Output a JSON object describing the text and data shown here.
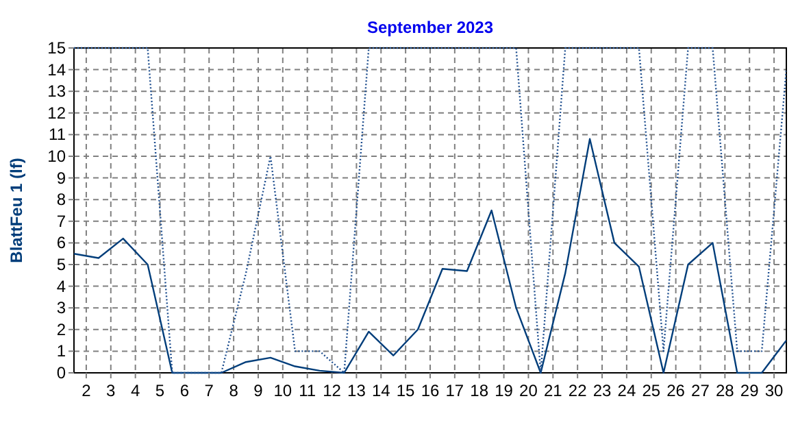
{
  "chart_data": {
    "type": "line",
    "title": "September 2023",
    "ylabel": "BlattFeu 1  (lf)",
    "x": [
      1.5,
      2.5,
      3.5,
      4.5,
      5.5,
      6.5,
      7.5,
      8.5,
      9.5,
      10.5,
      11.5,
      12.5,
      13.5,
      14.5,
      15.5,
      16.5,
      17.5,
      18.5,
      19.5,
      20.5,
      21.5,
      22.5,
      23.5,
      24.5,
      25.5,
      26.5,
      27.5,
      28.5,
      29.5,
      30.5
    ],
    "series": [
      {
        "color": "#003d7a",
        "line_style": "solid",
        "values": [
          5.5,
          5.3,
          6.2,
          5,
          0,
          0,
          0,
          0.5,
          0.7,
          0.3,
          0.1,
          0,
          1.9,
          0.8,
          2,
          4.8,
          4.7,
          7.5,
          3,
          0,
          4.6,
          10.8,
          6,
          4.9,
          0,
          5,
          6,
          0,
          0,
          1.5
        ]
      },
      {
        "color": "#1f4f8f",
        "line_style": "dotted",
        "values": [
          15,
          15,
          15,
          15,
          0,
          0,
          0,
          4.6,
          10,
          1,
          1,
          0,
          15,
          15,
          15,
          15,
          15,
          15,
          15,
          0,
          15,
          15,
          15,
          15,
          1,
          15,
          15,
          1,
          1,
          14
        ]
      }
    ],
    "xlim": [
      1.5,
      30.5
    ],
    "xticks": [
      2,
      3,
      4,
      5,
      6,
      7,
      8,
      9,
      10,
      11,
      12,
      13,
      14,
      15,
      16,
      17,
      18,
      19,
      20,
      21,
      22,
      23,
      24,
      25,
      26,
      27,
      28,
      29,
      30
    ],
    "ylim": [
      0,
      15
    ],
    "yticks": [
      0,
      1,
      2,
      3,
      4,
      5,
      6,
      7,
      8,
      9,
      10,
      11,
      12,
      13,
      14,
      15
    ],
    "grid": true,
    "marker": "none"
  }
}
